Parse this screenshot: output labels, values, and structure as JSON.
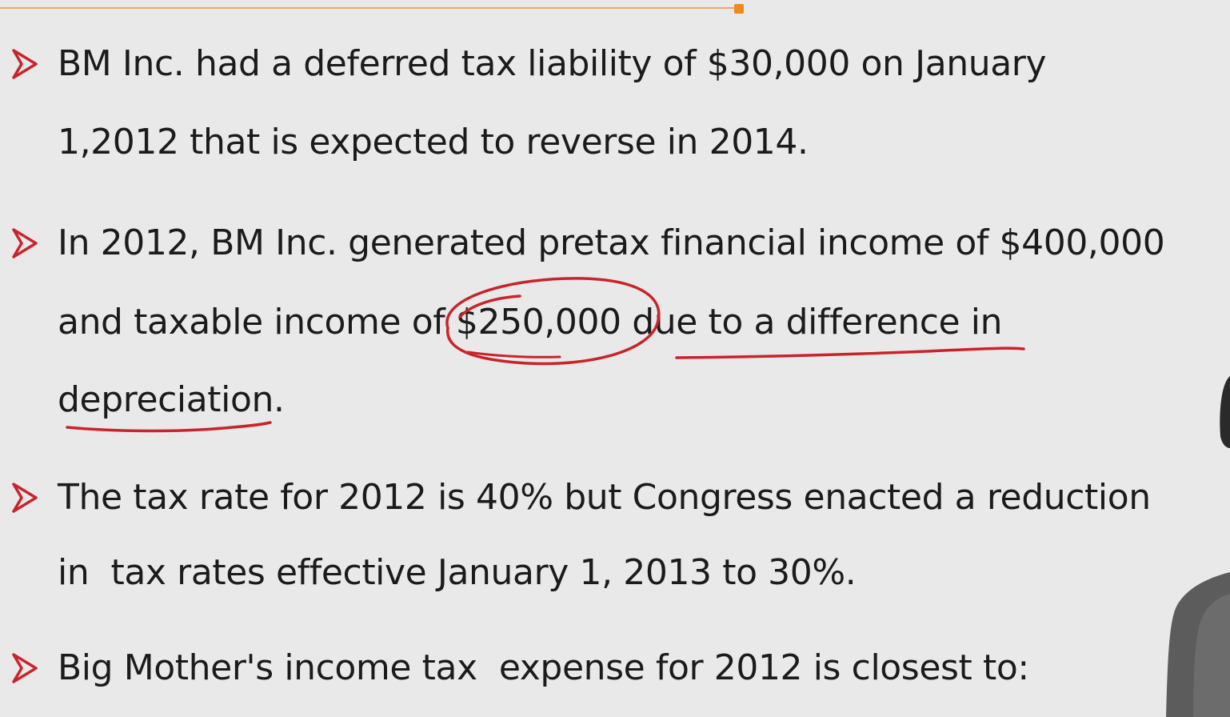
{
  "slide": {
    "accent_color": "#ef8a1c",
    "bullet_color": "#c8242b",
    "annotation_color": "#c8242b",
    "bullet_icon": "arrow-right-icon",
    "bullets": [
      {
        "lines": [
          "BM Inc. had a deferred tax liability of $30,000 on January",
          "1,2012 that is expected to reverse in 2014."
        ]
      },
      {
        "lines": [
          "In 2012, BM Inc. generated pretax financial income of $400,000",
          "and taxable income of $250,000 due to a difference in",
          "depreciation."
        ]
      },
      {
        "lines": [
          "The tax rate for 2012 is 40% but Congress enacted a reduction",
          "in  tax rates effective January 1, 2013 to 30%."
        ]
      },
      {
        "lines": [
          "Big Mother's income tax  expense for 2012 is closest to:"
        ]
      }
    ]
  }
}
